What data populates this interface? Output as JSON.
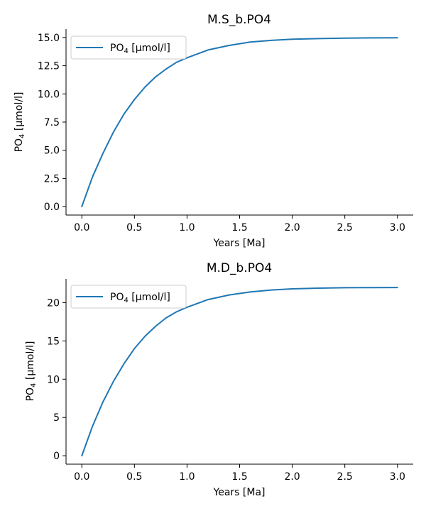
{
  "chart_data": [
    {
      "type": "line",
      "title": "M.S_b.PO4",
      "xlabel": "Years [Ma]",
      "ylabel_main": "PO",
      "ylabel_sub": "4",
      "ylabel_rest": " [μmol/l]",
      "xlim": [
        -0.15,
        3.15
      ],
      "ylim": [
        -0.75,
        15.75
      ],
      "xticks": [
        "0.0",
        "0.5",
        "1.0",
        "1.5",
        "2.0",
        "2.5",
        "3.0"
      ],
      "xtick_values": [
        0,
        0.5,
        1,
        1.5,
        2,
        2.5,
        3
      ],
      "yticks": [
        "0.0",
        "2.5",
        "5.0",
        "7.5",
        "10.0",
        "12.5",
        "15.0"
      ],
      "ytick_values": [
        0,
        2.5,
        5,
        7.5,
        10,
        12.5,
        15
      ],
      "legend_position": "upper-left",
      "series": [
        {
          "name_main": "PO",
          "name_sub": "4",
          "name_rest": " [μmol/l]",
          "color": "#1f77b4",
          "x": [
            0,
            0.1,
            0.2,
            0.3,
            0.4,
            0.5,
            0.6,
            0.7,
            0.8,
            0.9,
            1.0,
            1.2,
            1.4,
            1.6,
            1.8,
            2.0,
            2.25,
            2.5,
            2.75,
            3.0
          ],
          "y": [
            0,
            2.6,
            4.7,
            6.6,
            8.2,
            9.5,
            10.6,
            11.5,
            12.2,
            12.8,
            13.2,
            13.9,
            14.3,
            14.6,
            14.75,
            14.85,
            14.91,
            14.95,
            14.97,
            14.98
          ]
        }
      ]
    },
    {
      "type": "line",
      "title": "M.D_b.PO4",
      "xlabel": "Years [Ma]",
      "ylabel_main": "PO",
      "ylabel_sub": "4",
      "ylabel_rest": " [μmol/l]",
      "xlim": [
        -0.15,
        3.15
      ],
      "ylim": [
        -1.1,
        23.1
      ],
      "xticks": [
        "0.0",
        "0.5",
        "1.0",
        "1.5",
        "2.0",
        "2.5",
        "3.0"
      ],
      "xtick_values": [
        0,
        0.5,
        1,
        1.5,
        2,
        2.5,
        3
      ],
      "yticks": [
        "0",
        "5",
        "10",
        "15",
        "20"
      ],
      "ytick_values": [
        0,
        5,
        10,
        15,
        20
      ],
      "legend_position": "upper-left",
      "series": [
        {
          "name_main": "PO",
          "name_sub": "4",
          "name_rest": " [μmol/l]",
          "color": "#1f77b4",
          "x": [
            0,
            0.1,
            0.2,
            0.3,
            0.4,
            0.5,
            0.6,
            0.7,
            0.8,
            0.9,
            1.0,
            1.2,
            1.4,
            1.6,
            1.8,
            2.0,
            2.25,
            2.5,
            2.75,
            3.0
          ],
          "y": [
            0,
            3.8,
            7.0,
            9.7,
            12.0,
            14.0,
            15.6,
            16.9,
            18.0,
            18.8,
            19.4,
            20.4,
            21.0,
            21.4,
            21.65,
            21.8,
            21.9,
            21.95,
            21.97,
            21.98
          ]
        }
      ]
    }
  ]
}
